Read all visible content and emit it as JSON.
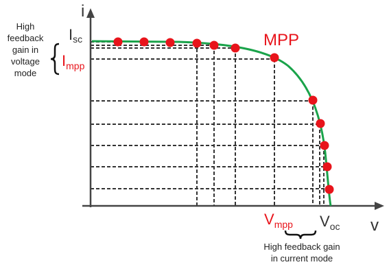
{
  "diagram": {
    "y_axis_label": "i",
    "x_axis_label": "v",
    "isc_main": "I",
    "isc_sub": "sc",
    "impp_main": "I",
    "impp_sub": "mpp",
    "vmpp_main": "V",
    "vmpp_sub": "mpp",
    "voc_main": "V",
    "voc_sub": "oc",
    "mpp_label": "MPP",
    "voltage_mode_note": [
      "High",
      "feedback",
      "gain in",
      "voltage",
      "mode"
    ],
    "current_mode_note": [
      "High feedback gain",
      "in current mode"
    ],
    "colors": {
      "curve": "#1aa34a",
      "point": "#e8141b",
      "accent_text": "#e8141b",
      "axis": "#444444",
      "guides": "#333333"
    },
    "icons": [
      "left-brace-icon",
      "bottom-brace-icon",
      "arrow-up-icon",
      "arrow-right-icon"
    ]
  }
}
